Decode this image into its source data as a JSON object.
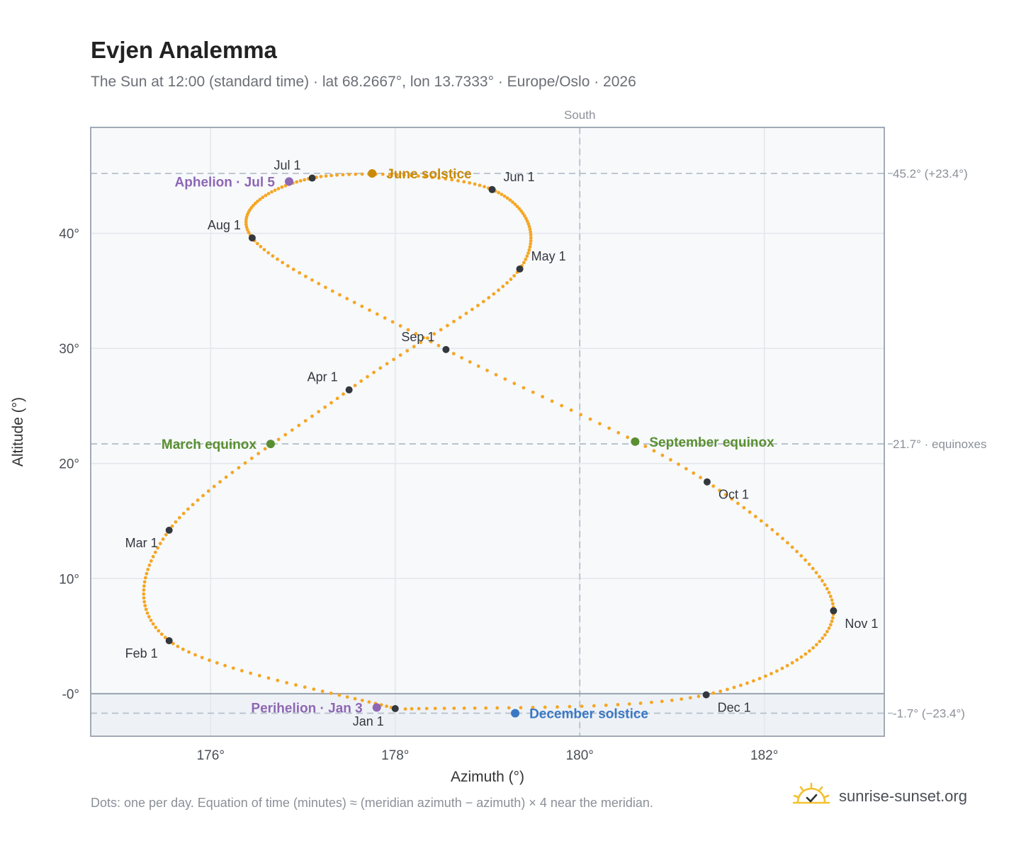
{
  "header": {
    "title": "Evjen Analemma",
    "subtitle": "The Sun at 12:00 (standard time) · lat 68.2667°, lon 13.7333° · Europe/Oslo · 2026"
  },
  "footer": {
    "note": "Dots: one per day. Equation of time (minutes) ≈ (meridian azimuth − azimuth) × 4 near the meridian.",
    "brand": "sunrise-sunset.org",
    "brand_icon": "sun-check-icon"
  },
  "chart_data": {
    "type": "scatter",
    "title": "Evjen Analemma",
    "xlabel": "Azimuth (°)",
    "ylabel": "Altitude (°)",
    "xlim": [
      174.7,
      183.3
    ],
    "ylim": [
      -3.7,
      49.2
    ],
    "x_ticks": [
      176,
      178,
      180,
      182
    ],
    "x_tick_labels": [
      "176°",
      "178°",
      "180°",
      "182°"
    ],
    "y_ticks": [
      0,
      10,
      20,
      30,
      40
    ],
    "y_tick_labels": [
      "-0°",
      "10°",
      "20°",
      "30°",
      "40°"
    ],
    "grid": true,
    "meridian": {
      "azimuth": 180,
      "label": "South"
    },
    "horizon_altitude": 0,
    "reference_lines": [
      {
        "altitude": 45.2,
        "label": "45.2° (+23.4°)"
      },
      {
        "altitude": 21.7,
        "label": "21.7° · equinoxes"
      },
      {
        "altitude": -1.7,
        "label": "-1.7° (−23.4°)"
      }
    ],
    "series_note": "one dot per day",
    "path_points": [
      {
        "day": 1,
        "az": 178.0,
        "alt": -1.3
      },
      {
        "day": 32,
        "az": 175.55,
        "alt": 4.6
      },
      {
        "day": 60,
        "az": 175.55,
        "alt": 14.2
      },
      {
        "day": 91,
        "az": 177.5,
        "alt": 26.4
      },
      {
        "day": 121,
        "az": 179.35,
        "alt": 36.9
      },
      {
        "day": 152,
        "az": 179.05,
        "alt": 43.8
      },
      {
        "day": 182,
        "az": 177.1,
        "alt": 44.8
      },
      {
        "day": 213,
        "az": 176.45,
        "alt": 39.6
      },
      {
        "day": 244,
        "az": 178.55,
        "alt": 29.9
      },
      {
        "day": 274,
        "az": 181.38,
        "alt": 18.4
      },
      {
        "day": 305,
        "az": 182.75,
        "alt": 7.2
      },
      {
        "day": 335,
        "az": 181.37,
        "alt": -0.1
      },
      {
        "day": 365,
        "az": 178.05,
        "alt": -1.35
      }
    ],
    "month_markers": [
      {
        "label": "Jan 1",
        "az": 178.0,
        "alt": -1.3,
        "pos": "below-left"
      },
      {
        "label": "Feb 1",
        "az": 175.55,
        "alt": 4.6,
        "pos": "below-left"
      },
      {
        "label": "Mar 1",
        "az": 175.55,
        "alt": 14.2,
        "pos": "below-left"
      },
      {
        "label": "Apr 1",
        "az": 177.5,
        "alt": 26.4,
        "pos": "above-left"
      },
      {
        "label": "May 1",
        "az": 179.35,
        "alt": 36.9,
        "pos": "above-right"
      },
      {
        "label": "Jun 1",
        "az": 179.05,
        "alt": 43.8,
        "pos": "above-right"
      },
      {
        "label": "Jul 1",
        "az": 177.1,
        "alt": 44.8,
        "pos": "above-left"
      },
      {
        "label": "Aug 1",
        "az": 176.45,
        "alt": 39.6,
        "pos": "above-left"
      },
      {
        "label": "Sep 1",
        "az": 178.55,
        "alt": 29.9,
        "pos": "above-left"
      },
      {
        "label": "Oct 1",
        "az": 181.38,
        "alt": 18.4,
        "pos": "below-right"
      },
      {
        "label": "Nov 1",
        "az": 182.75,
        "alt": 7.2,
        "pos": "below-right"
      },
      {
        "label": "Dec 1",
        "az": 181.37,
        "alt": -0.1,
        "pos": "below-right"
      }
    ],
    "events": [
      {
        "label": "June solstice",
        "az": 177.75,
        "alt": 45.2,
        "color": "#c98a0b",
        "pos": "right"
      },
      {
        "label": "Aphelion · Jul 5",
        "az": 176.85,
        "alt": 44.5,
        "color": "#8e67b5",
        "pos": "left"
      },
      {
        "label": "March equinox",
        "az": 176.65,
        "alt": 21.7,
        "color": "#5a8f31",
        "pos": "left"
      },
      {
        "label": "September equinox",
        "az": 180.6,
        "alt": 21.9,
        "color": "#5a8f31",
        "pos": "right"
      },
      {
        "label": "Perihelion · Jan 3",
        "az": 177.8,
        "alt": -1.2,
        "color": "#8e67b5",
        "pos": "left"
      },
      {
        "label": "December solstice",
        "az": 179.3,
        "alt": -1.7,
        "color": "#3b78c3",
        "pos": "right"
      }
    ],
    "colors": {
      "curve": "#f5a623",
      "month_marker": "#33383f",
      "grid": "#e3e7ec",
      "plot_bg": "#f7f9fb",
      "below_horizon_bg": "#eef2f6",
      "frame": "#98a2ae",
      "reference_line": "#b6c0cb"
    }
  }
}
